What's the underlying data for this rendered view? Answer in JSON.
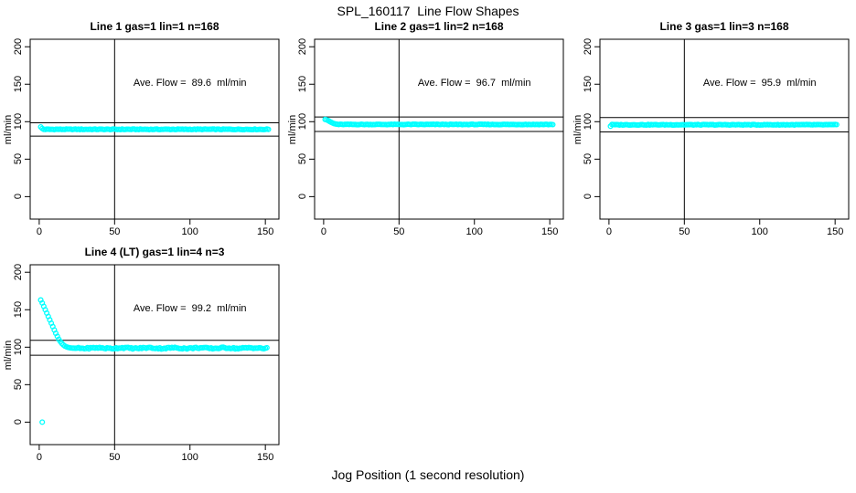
{
  "page": {
    "main_title": "SPL_160117  Line Flow Shapes",
    "bottom_axis_label": "Jog Position (1 second resolution)"
  },
  "colors": {
    "points": "#00FFFF",
    "axis": "#000000",
    "background": "#FFFFFF",
    "text": "#000000"
  },
  "chart_data": {
    "type": "scatter",
    "title": "SPL_160117  Line Flow Shapes",
    "xlabel": "Jog Position (1 second resolution)",
    "ylabel": "ml/min",
    "x_ticks": [
      0,
      50,
      100,
      150
    ],
    "y_ticks": [
      0,
      50,
      100,
      150,
      200
    ],
    "x_axis_range": [
      -6,
      159
    ],
    "y_axis_range": [
      -30,
      210
    ],
    "grid": false,
    "legend": "none",
    "marker": "open-circle",
    "vertical_ref_line_x": 50,
    "ref_lines_pct_of_avg": [
      1.1,
      0.9
    ],
    "annotation_center_xy": [
      100,
      150
    ],
    "panels": [
      {
        "title": "Line 1 gas=1 lin=1 n=168",
        "ave_flow_ml_min": 89.6,
        "annotation": "Ave. Flow =  89.6  ml/min",
        "ylabel": "ml/min",
        "lead_points": [
          [
            1,
            93
          ],
          [
            2,
            91
          ]
        ],
        "flat_segment": {
          "x_from": 3,
          "x_to": 152,
          "y": 89.8,
          "jitter": 0.45
        },
        "outlier_points": []
      },
      {
        "title": "Line 2 gas=1 lin=2 n=168",
        "ave_flow_ml_min": 96.7,
        "annotation": "Ave. Flow =  96.7  ml/min",
        "ylabel": "ml/min",
        "lead_points": [
          [
            1,
            103
          ],
          [
            2,
            102.5
          ],
          [
            3,
            101.5
          ],
          [
            4,
            100.3
          ],
          [
            5,
            99.2
          ],
          [
            6,
            98.2
          ],
          [
            7,
            97.4
          ],
          [
            8,
            96.9
          ],
          [
            9,
            96.6
          ]
        ],
        "flat_segment": {
          "x_from": 10,
          "x_to": 152,
          "y": 96.3,
          "jitter": 0.35
        },
        "outlier_points": []
      },
      {
        "title": "Line 3 gas=1 lin=3 n=168",
        "ave_flow_ml_min": 95.9,
        "annotation": "Ave. Flow =  95.9  ml/min",
        "ylabel": "ml/min",
        "lead_points": [
          [
            1,
            94
          ],
          [
            2,
            96.3
          ]
        ],
        "flat_segment": {
          "x_from": 3,
          "x_to": 151,
          "y": 95.9,
          "jitter": 0.4
        },
        "outlier_points": []
      },
      {
        "title": "Line 4 (LT) gas=1 lin=4 n=3",
        "ave_flow_ml_min": 99.2,
        "annotation": "Ave. Flow =  99.2  ml/min",
        "ylabel": "ml/min",
        "lead_points": [
          [
            1,
            163
          ],
          [
            2,
            159
          ],
          [
            3,
            154.5
          ],
          [
            4,
            150
          ],
          [
            5,
            145.5
          ],
          [
            6,
            141
          ],
          [
            7,
            136.5
          ],
          [
            8,
            132
          ],
          [
            9,
            127.5
          ],
          [
            10,
            123
          ],
          [
            11,
            118.5
          ],
          [
            12,
            114.5
          ],
          [
            13,
            110.5
          ],
          [
            14,
            107.5
          ],
          [
            15,
            105
          ],
          [
            16,
            103
          ],
          [
            17,
            101.5
          ],
          [
            18,
            100.5
          ],
          [
            19,
            99.8
          ],
          [
            20,
            99.3
          ],
          [
            21,
            99
          ],
          [
            22,
            98.8
          ],
          [
            23,
            98.7
          ],
          [
            24,
            98.6
          ]
        ],
        "flat_segment": {
          "x_from": 25,
          "x_to": 151,
          "y": 98.8,
          "jitter": 0.9,
          "wave_amp": 0.4,
          "wave_period": 17
        },
        "outlier_points": [
          [
            2,
            0
          ]
        ]
      }
    ]
  }
}
